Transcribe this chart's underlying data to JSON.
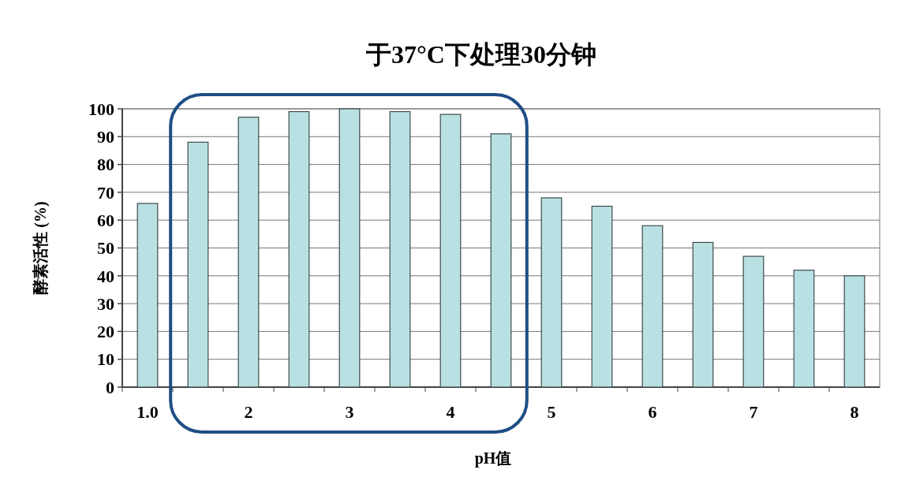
{
  "chart_data": {
    "type": "bar",
    "title": "于37°C下处理30分钟",
    "xlabel": "pH值",
    "ylabel": "酵素活性 (%)",
    "categories": [
      "1.0",
      null,
      "2",
      null,
      "3",
      null,
      "4",
      null,
      "5",
      null,
      "6",
      null,
      "7",
      null,
      "8"
    ],
    "values": [
      66,
      88,
      97,
      99,
      100,
      99,
      98,
      91,
      68,
      65,
      58,
      52,
      47,
      42,
      40
    ],
    "color": "#b9e1e4",
    "ylim": [
      0,
      100
    ],
    "yticks": [
      0,
      10,
      20,
      30,
      40,
      50,
      60,
      70,
      80,
      90,
      100
    ],
    "grid": "y"
  }
}
